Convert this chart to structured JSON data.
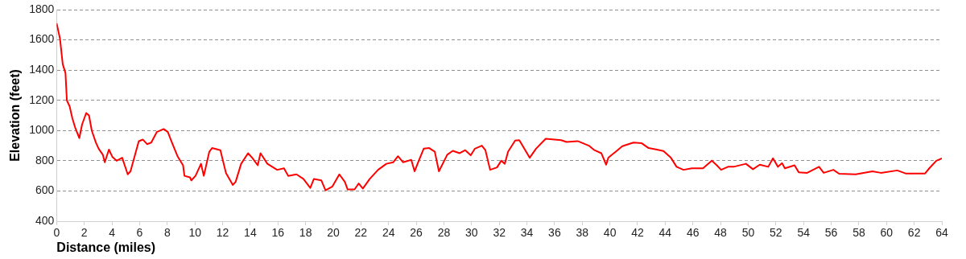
{
  "chart_data": {
    "type": "line",
    "xlabel": "Distance (miles)",
    "ylabel": "Elevation (feet)",
    "xlim": [
      0,
      64
    ],
    "xticks": [
      0,
      2,
      4,
      6,
      8,
      10,
      12,
      14,
      16,
      18,
      20,
      22,
      24,
      26,
      28,
      30,
      32,
      34,
      36,
      38,
      40,
      42,
      44,
      46,
      48,
      50,
      52,
      54,
      56,
      58,
      60,
      62,
      64
    ],
    "ylim": [
      400,
      1800
    ],
    "yticks": [
      400,
      600,
      800,
      1000,
      1200,
      1400,
      1600,
      1800
    ],
    "grid": "y",
    "marker": "none",
    "line_style": "solid",
    "series": [
      {
        "color": "#ff0000",
        "x": [
          0,
          0.24,
          0.44,
          0.64,
          0.74,
          0.94,
          1.14,
          1.34,
          1.64,
          1.84,
          2.14,
          2.34,
          2.54,
          2.84,
          3.04,
          3.34,
          3.48,
          3.78,
          4.04,
          4.34,
          4.74,
          5.14,
          5.34,
          5.64,
          5.94,
          6.24,
          6.54,
          6.84,
          7.24,
          7.74,
          8.04,
          8.34,
          8.74,
          9.14,
          9.24,
          9.64,
          9.74,
          10.04,
          10.44,
          10.64,
          11.04,
          11.24,
          11.84,
          12.24,
          12.74,
          12.94,
          13.34,
          13.84,
          14.14,
          14.54,
          14.74,
          15.24,
          15.94,
          16.44,
          16.74,
          17.34,
          17.84,
          18.34,
          18.6,
          19.14,
          19.44,
          19.94,
          20.44,
          20.84,
          21.04,
          21.54,
          21.84,
          22.14,
          22.64,
          23.24,
          23.84,
          24.34,
          24.68,
          25.04,
          25.64,
          25.88,
          26.14,
          26.54,
          26.94,
          27.34,
          27.64,
          28.24,
          28.64,
          29.14,
          29.54,
          29.94,
          30.24,
          30.74,
          31.0,
          31.34,
          31.84,
          32.14,
          32.4,
          32.64,
          33.15,
          33.45,
          34.2,
          34.66,
          35.36,
          36.47,
          36.87,
          37.67,
          38.48,
          38.88,
          39.38,
          39.73,
          39.89,
          40.9,
          41.7,
          42.3,
          42.8,
          43.4,
          43.87,
          44.41,
          44.82,
          45.32,
          45.92,
          46.73,
          47.37,
          47.73,
          48.04,
          48.54,
          48.94,
          49.84,
          50.34,
          50.84,
          51.45,
          51.79,
          52.15,
          52.45,
          52.65,
          53.35,
          53.65,
          54.26,
          55.12,
          55.46,
          56.16,
          56.57,
          57.77,
          58.98,
          59.58,
          60.78,
          61.38,
          62.79,
          63.09,
          63.6,
          64.0
        ],
        "values": [
          1710,
          1610,
          1440,
          1380,
          1200,
          1160,
          1080,
          1020,
          950,
          1040,
          1116,
          1100,
          1000,
          920,
          880,
          840,
          790,
          874,
          824,
          800,
          820,
          710,
          730,
          830,
          930,
          940,
          910,
          920,
          990,
          1010,
          990,
          920,
          830,
          770,
          700,
          690,
          670,
          700,
          780,
          700,
          860,
          884,
          870,
          720,
          640,
          660,
          780,
          850,
          820,
          770,
          850,
          780,
          740,
          750,
          700,
          710,
          680,
          620,
          680,
          670,
          604,
          630,
          710,
          660,
          610,
          610,
          650,
          616,
          680,
          740,
          780,
          790,
          830,
          790,
          806,
          730,
          790,
          880,
          884,
          860,
          730,
          840,
          866,
          850,
          870,
          836,
          880,
          900,
          870,
          740,
          756,
          800,
          780,
          860,
          934,
          936,
          820,
          880,
          946,
          936,
          924,
          930,
          900,
          870,
          850,
          774,
          820,
          896,
          920,
          916,
          884,
          874,
          864,
          820,
          760,
          740,
          750,
          750,
          800,
          770,
          740,
          760,
          760,
          780,
          744,
          774,
          760,
          816,
          760,
          784,
          750,
          770,
          724,
          720,
          760,
          720,
          740,
          714,
          710,
          730,
          720,
          736,
          716,
          716,
          750,
          800,
          816
        ]
      }
    ]
  }
}
